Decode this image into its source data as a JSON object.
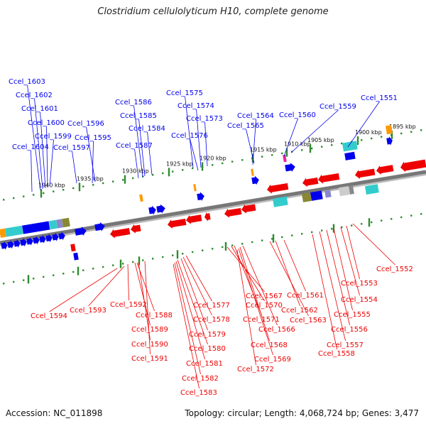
{
  "title": "Clostridium cellulolyticum H10, complete genome",
  "accession_text": "Accession: NC_011898",
  "summary_text": "Topology: circular; Length: 4,068,724 bp; Genes: 3,477",
  "colors": {
    "forward": "#0000ee",
    "reverse": "#ee0000",
    "backbone": "#777777",
    "tick": "#2e8b2e",
    "cyan": "#33cccc",
    "orange": "#ff9900",
    "olive": "#888833",
    "magenta": "#ee2299"
  },
  "scale_ticks": [
    "1940 kbp",
    "1935 kbp",
    "1930 kbp",
    "1925 kbp",
    "1920 kbp",
    "1915 kbp",
    "1910 kbp",
    "1905 kbp",
    "1900 kbp",
    "1895 kbp"
  ],
  "forward_labels": [
    "Ccel_1603",
    "Ccel_1602",
    "Ccel_1601",
    "Ccel_1600",
    "Ccel_1599",
    "Ccel_1604",
    "Ccel_1597",
    "Ccel_1596",
    "Ccel_1595",
    "Ccel_1586",
    "Ccel_1585",
    "Ccel_1584",
    "Ccel_1587",
    "Ccel_1575",
    "Ccel_1574",
    "Ccel_1573",
    "Ccel_1576",
    "Ccel_1564",
    "Ccel_1565",
    "Ccel_1560",
    "Ccel_1559",
    "Ccel_1551"
  ],
  "reverse_labels": [
    "Ccel_1594",
    "Ccel_1593",
    "Ccel_1592",
    "Ccel_1588",
    "Ccel_1589",
    "Ccel_1590",
    "Ccel_1591",
    "Ccel_1577",
    "Ccel_1578",
    "Ccel_1579",
    "Ccel_1580",
    "Ccel_1581",
    "Ccel_1582",
    "Ccel_1583",
    "Ccel_1567",
    "Ccel_1570",
    "Ccel_1571",
    "Ccel_1566",
    "Ccel_1568",
    "Ccel_1569",
    "Ccel_1572",
    "Ccel_1561",
    "Ccel_1562",
    "Ccel_1563",
    "Ccel_1552",
    "Ccel_1553",
    "Ccel_1554",
    "Ccel_1555",
    "Ccel_1556",
    "Ccel_1557",
    "Ccel_1558"
  ]
}
